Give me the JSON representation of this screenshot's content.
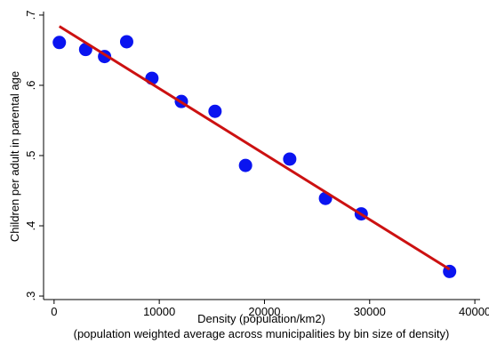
{
  "chart_data": {
    "type": "scatter",
    "xlabel": "Density (population/km2)",
    "xlabel_note": "(population weighted average across municipalities by bin size of density)",
    "ylabel": "Children per adult in parental age",
    "xlim": [
      -1000,
      40500
    ],
    "ylim": [
      0.295,
      0.705
    ],
    "x_ticks": [
      {
        "value": 0,
        "label": "0"
      },
      {
        "value": 10000,
        "label": "10000"
      },
      {
        "value": 20000,
        "label": "20000"
      },
      {
        "value": 30000,
        "label": "30000"
      },
      {
        "value": 40000,
        "label": "40000"
      }
    ],
    "y_ticks": [
      {
        "value": 0.3,
        "label": ".3"
      },
      {
        "value": 0.4,
        "label": ".4"
      },
      {
        "value": 0.5,
        "label": ".5"
      },
      {
        "value": 0.6,
        "label": ".6"
      },
      {
        "value": 0.7,
        "label": ".7"
      }
    ],
    "grid": false,
    "legend": "none",
    "series": [
      {
        "kind": "scatter",
        "color": "#0a14f0",
        "points": [
          {
            "x": 500,
            "y": 0.661
          },
          {
            "x": 3000,
            "y": 0.651
          },
          {
            "x": 4800,
            "y": 0.641
          },
          {
            "x": 6900,
            "y": 0.662
          },
          {
            "x": 9300,
            "y": 0.61
          },
          {
            "x": 12100,
            "y": 0.577
          },
          {
            "x": 15300,
            "y": 0.563
          },
          {
            "x": 18200,
            "y": 0.486
          },
          {
            "x": 22400,
            "y": 0.495
          },
          {
            "x": 25800,
            "y": 0.439
          },
          {
            "x": 29200,
            "y": 0.417
          },
          {
            "x": 37600,
            "y": 0.335
          }
        ]
      },
      {
        "kind": "line",
        "color": "#cc1111",
        "points": [
          {
            "x": 500,
            "y": 0.684
          },
          {
            "x": 37600,
            "y": 0.338
          }
        ]
      }
    ]
  }
}
